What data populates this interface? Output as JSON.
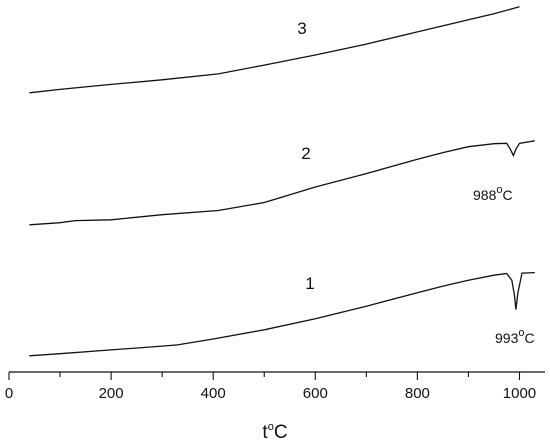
{
  "chart_data": {
    "type": "line",
    "title": "",
    "xlabel": {
      "base": "t",
      "sup": "o",
      "unit": "C"
    },
    "ylabel": "",
    "xlim": [
      0,
      1050
    ],
    "x_ticks": [
      0,
      200,
      400,
      600,
      800,
      1000
    ],
    "minor_step": 100,
    "y_axis_shown": false,
    "grid": false,
    "series": [
      {
        "name": "1",
        "x": [
          40,
          100,
          200,
          300,
          330,
          400,
          500,
          600,
          700,
          800,
          850,
          900,
          950,
          975,
          985,
          990,
          993,
          997,
          1005,
          1030
        ],
        "y": [
          10,
          15,
          24,
          33,
          36,
          50,
          72,
          98,
          128,
          160,
          176,
          190,
          202,
          206,
          190,
          155,
          120,
          160,
          207,
          208
        ]
      },
      {
        "name": "2",
        "x": [
          40,
          100,
          130,
          200,
          300,
          410,
          500,
          530,
          600,
          700,
          800,
          850,
          900,
          950,
          975,
          982,
          988,
          993,
          1000,
          1030
        ],
        "y": [
          10,
          15,
          20,
          22,
          34,
          44,
          63,
          74,
          100,
          132,
          166,
          182,
          196,
          203,
          204,
          190,
          175,
          190,
          204,
          210
        ]
      },
      {
        "name": "3",
        "x": [
          40,
          100,
          200,
          300,
          410,
          500,
          600,
          700,
          800,
          900,
          950,
          1000
        ],
        "y": [
          10,
          18,
          30,
          41,
          55,
          76,
          100,
          126,
          155,
          184,
          198,
          215
        ]
      }
    ],
    "annotations": [
      {
        "curve": "1",
        "base": "993",
        "sup": "o",
        "unit": "C"
      },
      {
        "curve": "2",
        "base": "988",
        "sup": "o",
        "unit": "C"
      }
    ]
  }
}
